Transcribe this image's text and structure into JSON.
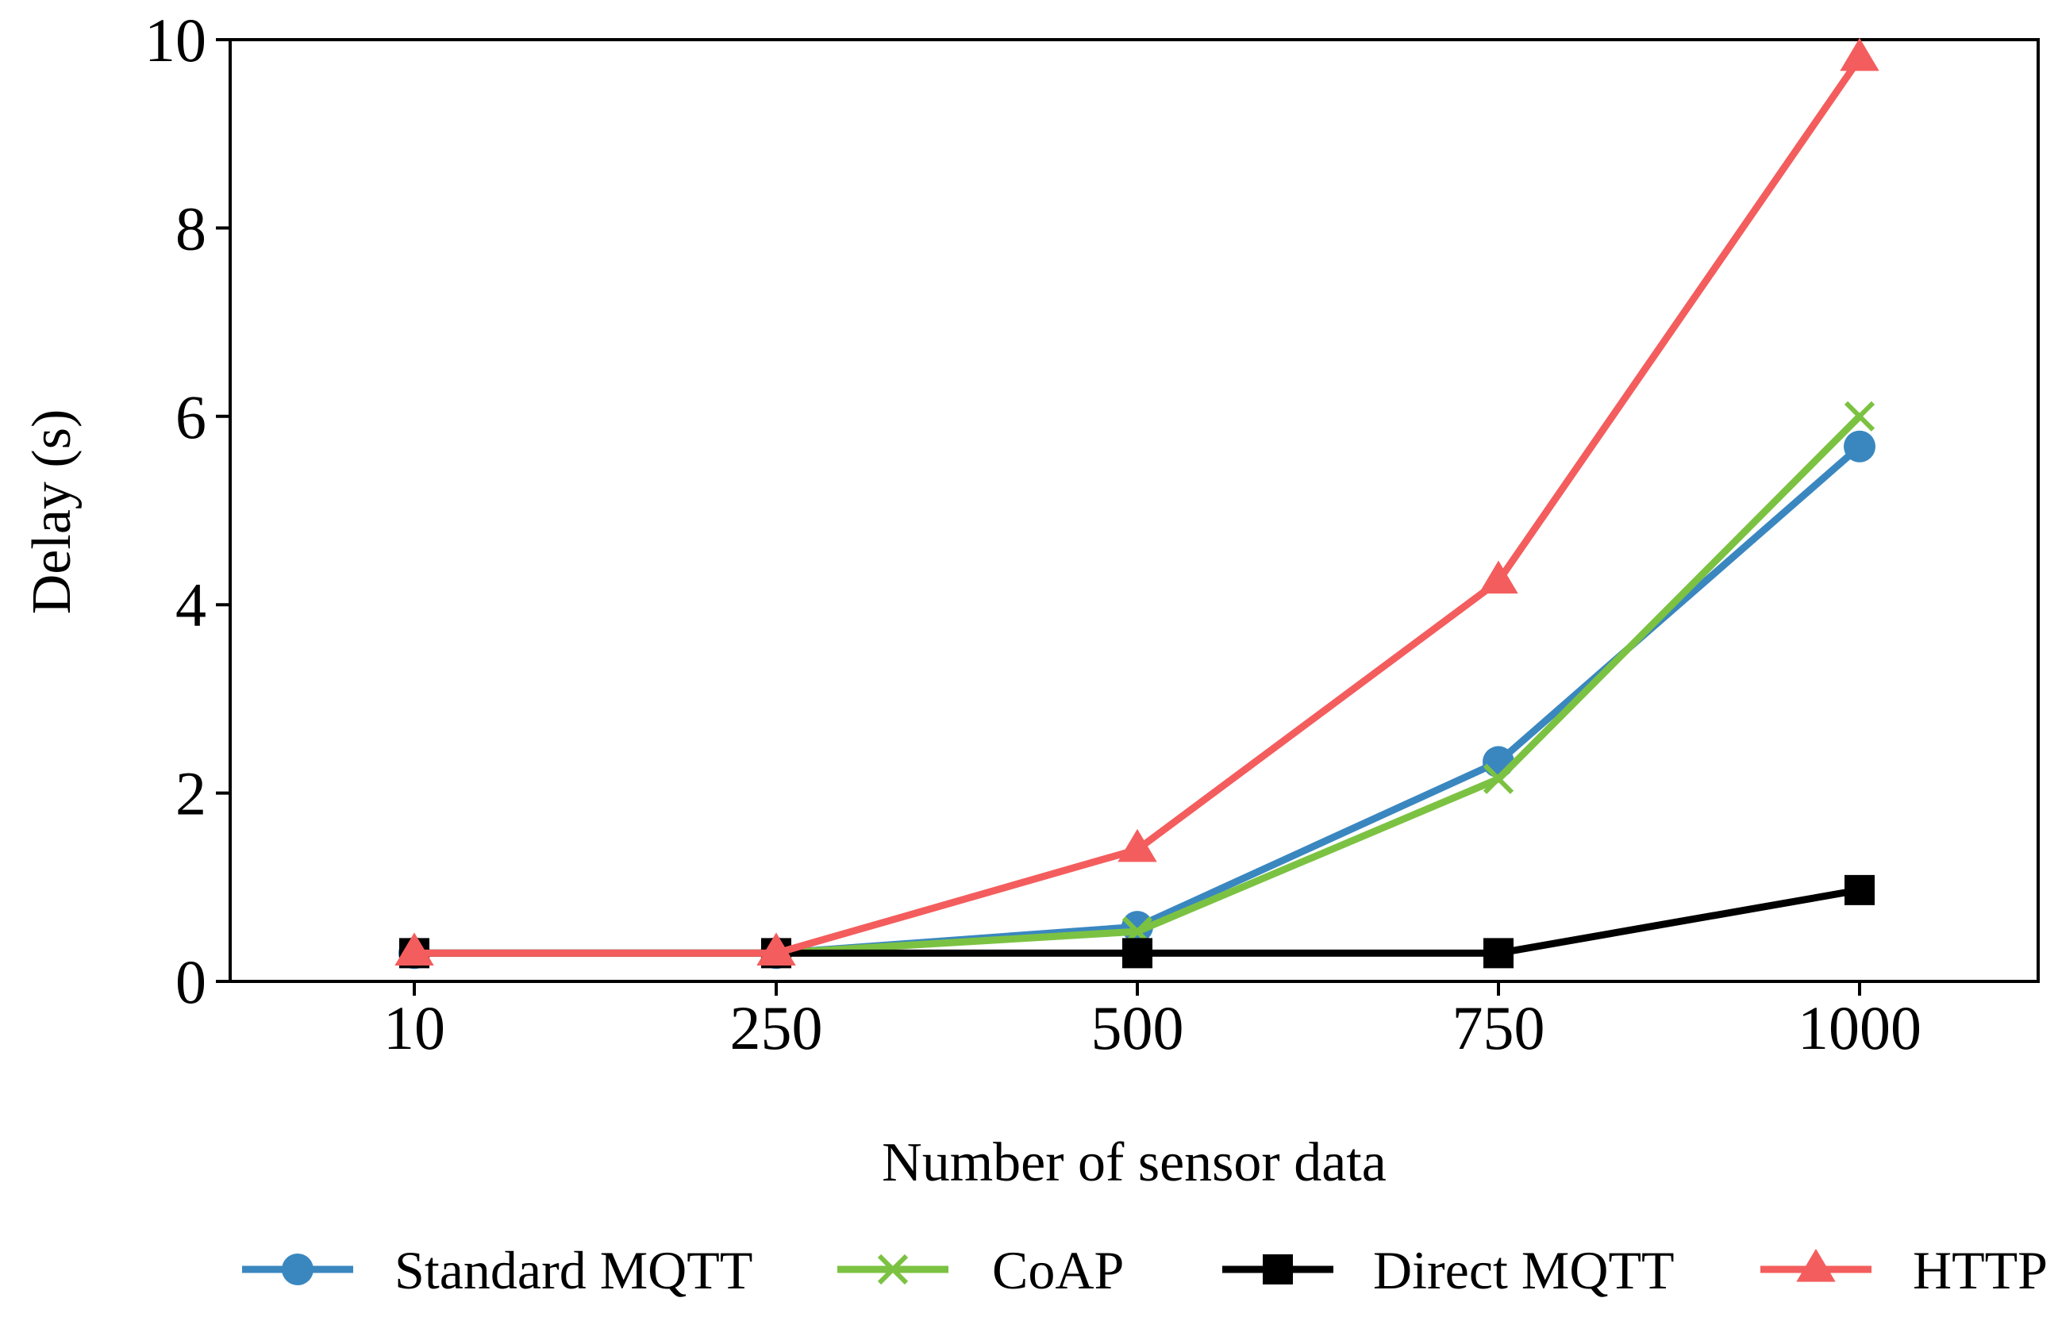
{
  "chart_data": {
    "type": "line",
    "title": "",
    "xlabel": "Number of sensor data",
    "ylabel": "Delay (s)",
    "categories": [
      "10",
      "250",
      "500",
      "750",
      "1000"
    ],
    "ylim": [
      0,
      10
    ],
    "yticks": [
      "0",
      "2",
      "4",
      "6",
      "8",
      "10"
    ],
    "grid": false,
    "legend_position": "bottom",
    "series": [
      {
        "name": "Standard MQTT",
        "color": "#3a87c0",
        "marker": "circle",
        "values": [
          0.3,
          0.3,
          0.58,
          2.33,
          5.68
        ]
      },
      {
        "name": "CoAP",
        "color": "#7cc242",
        "marker": "x",
        "values": [
          0.3,
          0.3,
          0.53,
          2.15,
          6.0
        ]
      },
      {
        "name": "Direct MQTT",
        "color": "#000000",
        "marker": "square",
        "values": [
          0.3,
          0.3,
          0.3,
          0.3,
          0.97
        ]
      },
      {
        "name": "HTTP",
        "color": "#f45d5d",
        "marker": "triangle",
        "values": [
          0.3,
          0.3,
          1.4,
          4.25,
          9.8
        ]
      }
    ]
  }
}
